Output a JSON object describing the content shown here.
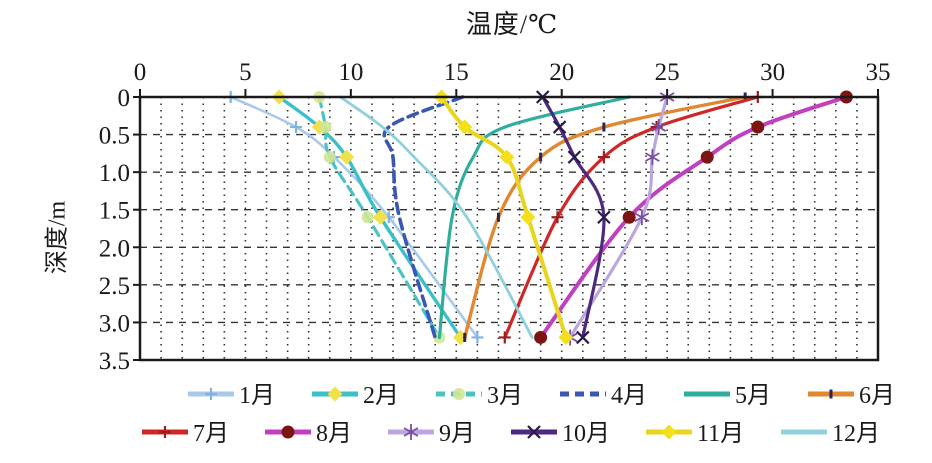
{
  "figure": {
    "background": "#ffffff"
  },
  "chart_data": {
    "type": "line",
    "title": "",
    "xlabel": "温度/℃",
    "ylabel": "深度/m",
    "x_axis": {
      "min": 0,
      "max": 35,
      "major_tick_step": 5,
      "minor_grid_step": 1,
      "position": "top",
      "tick_labels": [
        "0",
        "5",
        "10",
        "15",
        "20",
        "25",
        "30",
        "35"
      ]
    },
    "y_axis": {
      "min": 0,
      "max": 3.5,
      "tick_step": 0.5,
      "inverted": true,
      "tick_labels": [
        "0",
        "0.5",
        "1.0",
        "1.5",
        "2.0",
        "2.5",
        "3.0",
        "3.5"
      ]
    },
    "grid": {
      "visible": true,
      "vertical_style": "dotted",
      "horizontal_style": "dashed",
      "color": "#333333"
    },
    "depths_m": [
      0,
      0.4,
      0.8,
      1.6,
      3.2
    ],
    "series": [
      {
        "name": "1月",
        "color": "#a9c9e9",
        "dash": "solid",
        "width": 2.6,
        "marker": "plus",
        "marker_color": "#7fb2e0",
        "values": [
          4.3,
          7.4,
          9.2,
          11.8,
          16.0
        ]
      },
      {
        "name": "2月",
        "color": "#3bbfc9",
        "dash": "solid",
        "width": 3.4,
        "marker": "diamond",
        "marker_color": "#f0e04a",
        "values": [
          6.6,
          8.5,
          9.8,
          11.4,
          15.2
        ]
      },
      {
        "name": "3月",
        "color": "#4cc3c3",
        "dash": "dashed",
        "width": 3.2,
        "marker": "circle",
        "marker_color": "#cfe694",
        "values": [
          8.5,
          8.8,
          9.0,
          10.8,
          14.2
        ]
      },
      {
        "name": "4月",
        "color": "#3a57b5",
        "dash": "dashed",
        "width": 3.6,
        "marker": "none",
        "marker_color": "#3a57b5",
        "values": [
          15.3,
          11.8,
          12.0,
          12.3,
          14.0
        ]
      },
      {
        "name": "5月",
        "color": "#2fae9e",
        "dash": "solid",
        "width": 3.2,
        "marker": "none",
        "marker_color": "#2fae9e",
        "values": [
          23.2,
          17.3,
          15.8,
          14.8,
          14.2
        ]
      },
      {
        "name": "6月",
        "color": "#e0872f",
        "dash": "solid",
        "width": 3.4,
        "marker": "tick",
        "marker_color": "#27275a",
        "values": [
          28.7,
          22.0,
          19.0,
          17.0,
          15.4
        ]
      },
      {
        "name": "7月",
        "color": "#cf2727",
        "dash": "solid",
        "width": 3.2,
        "marker": "plus",
        "marker_color": "#9c1d1d",
        "values": [
          29.3,
          24.5,
          22.0,
          19.8,
          17.3
        ]
      },
      {
        "name": "8月",
        "color": "#c13fc1",
        "dash": "solid",
        "width": 4.0,
        "marker": "dot",
        "marker_color": "#7c1414",
        "values": [
          33.5,
          29.3,
          26.9,
          23.2,
          19.0
        ]
      },
      {
        "name": "9月",
        "color": "#bca6de",
        "dash": "solid",
        "width": 3.2,
        "marker": "asterisk",
        "marker_color": "#7a4fa0",
        "values": [
          25.0,
          24.6,
          24.3,
          23.8,
          20.4
        ]
      },
      {
        "name": "10月",
        "color": "#4b2a80",
        "dash": "solid",
        "width": 3.2,
        "marker": "cross",
        "marker_color": "#2a1a4a",
        "values": [
          19.1,
          19.9,
          20.6,
          22.0,
          21.0
        ]
      },
      {
        "name": "11月",
        "color": "#e8d51d",
        "dash": "solid",
        "width": 4.0,
        "marker": "diamond",
        "marker_color": "#f2e01c",
        "values": [
          14.3,
          15.4,
          17.4,
          18.4,
          20.2
        ]
      },
      {
        "name": "12月",
        "color": "#8fd0dc",
        "dash": "solid",
        "width": 2.8,
        "marker": "none",
        "marker_color": "#8fd0dc",
        "values": [
          9.5,
          11.5,
          13.0,
          15.5,
          18.6
        ]
      }
    ],
    "legend": {
      "position": "bottom",
      "rows": 2,
      "columns": 6
    }
  }
}
